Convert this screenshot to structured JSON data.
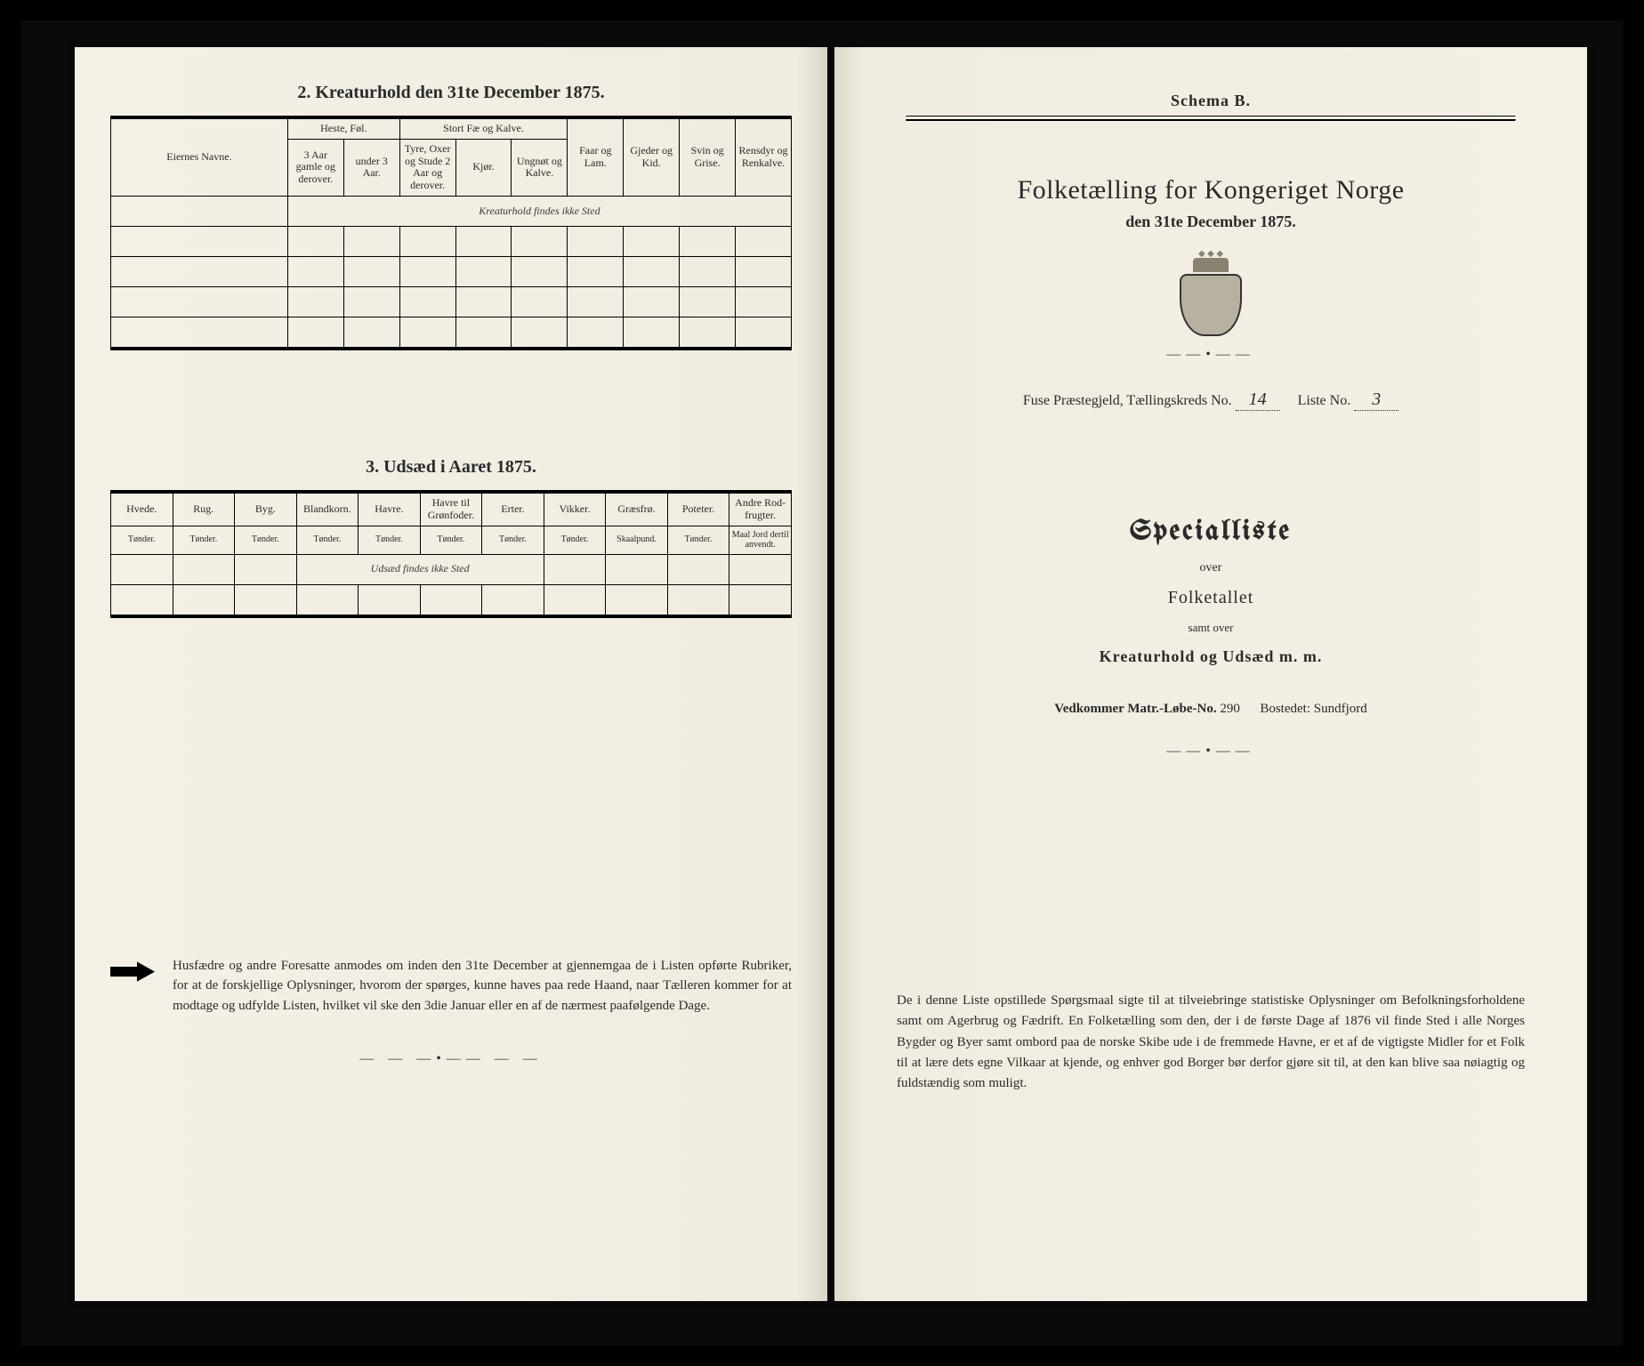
{
  "left": {
    "section2_title": "2.  Kreaturhold den 31te December 1875.",
    "table2": {
      "col_owner": "Eiernes Navne.",
      "grp_horse": "Heste, Føl.",
      "grp_cattle": "Stort Fæ og Kalve.",
      "col_horse_a": "3 Aar gamle og derover.",
      "col_horse_b": "under 3 Aar.",
      "col_cattle_a": "Tyre, Oxer og Stude 2 Aar og derover.",
      "col_cattle_b": "Kjør.",
      "col_cattle_c": "Ungnøt og Kalve.",
      "col_sheep": "Faar og Lam.",
      "col_goat": "Gjeder og Kid.",
      "col_pig": "Svin og Grise.",
      "col_reindeer": "Rensdyr og Renkalve.",
      "hand1": "Kreaturhold findes ikke Sted"
    },
    "section3_title": "3.  Udsæd i Aaret 1875.",
    "table3": {
      "cols": [
        "Hvede.",
        "Rug.",
        "Byg.",
        "Blandkorn.",
        "Havre.",
        "Havre til Grønfoder.",
        "Erter.",
        "Vikker.",
        "Græsfrø.",
        "Poteter.",
        "Andre Rod-frugter."
      ],
      "units": [
        "Tønder.",
        "Tønder.",
        "Tønder.",
        "Tønder.",
        "Tønder.",
        "Tønder.",
        "Tønder.",
        "Tønder.",
        "Skaalpund.",
        "Tønder.",
        "Maal Jord dertil anvendt."
      ],
      "hand2": "Udsæd findes ikke Sted"
    },
    "footer": "Husfædre og andre Foresatte anmodes om inden den 31te December at gjennemgaa de i Listen opførte Rubriker, for at de forskjellige Oplysninger, hvorom der spørges, kunne haves paa rede Haand, naar Tælleren kommer for at modtage og udfylde Listen, hvilket vil ske den 3die Januar eller en af de nærmest paafølgende Dage."
  },
  "right": {
    "schema": "Schema B.",
    "title": "Folketælling for Kongeriget Norge",
    "date": "den 31te December 1875.",
    "meta_pre": "Fuse Præstegjeld,  Tællingskreds No.",
    "meta_kreds": "14",
    "meta_mid": "Liste No.",
    "meta_liste": "3",
    "special": "Specialliste",
    "over1": "over",
    "folketallet": "Folketallet",
    "samt": "samt over",
    "kreatur": "Kreaturhold og Udsæd m. m.",
    "vedk_label": "Vedkommer Matr.-Løbe-No.",
    "matr_no": "290",
    "bostedet_label": "Bostedet:",
    "bostedet": "Sundfjord",
    "footer": "De i denne Liste opstillede Spørgsmaal sigte til at tilveiebringe statistiske Oplysninger om Befolkningsforholdene samt om Agerbrug og Fædrift.  En Folketælling som den, der i de første Dage af 1876 vil finde Sted i alle Norges Bygder og Byer samt ombord paa de norske Skibe ude i de fremmede Havne, er et af de vigtigste Midler for et Folk til at lære dets egne Vilkaar at kjende, og enhver god Borger bør derfor gjøre sit til, at den kan blive saa nøiagtig og fuldstændig som muligt."
  },
  "colors": {
    "paper": "#f4f0e6",
    "ink": "#2a2a2a",
    "background": "#000000"
  }
}
